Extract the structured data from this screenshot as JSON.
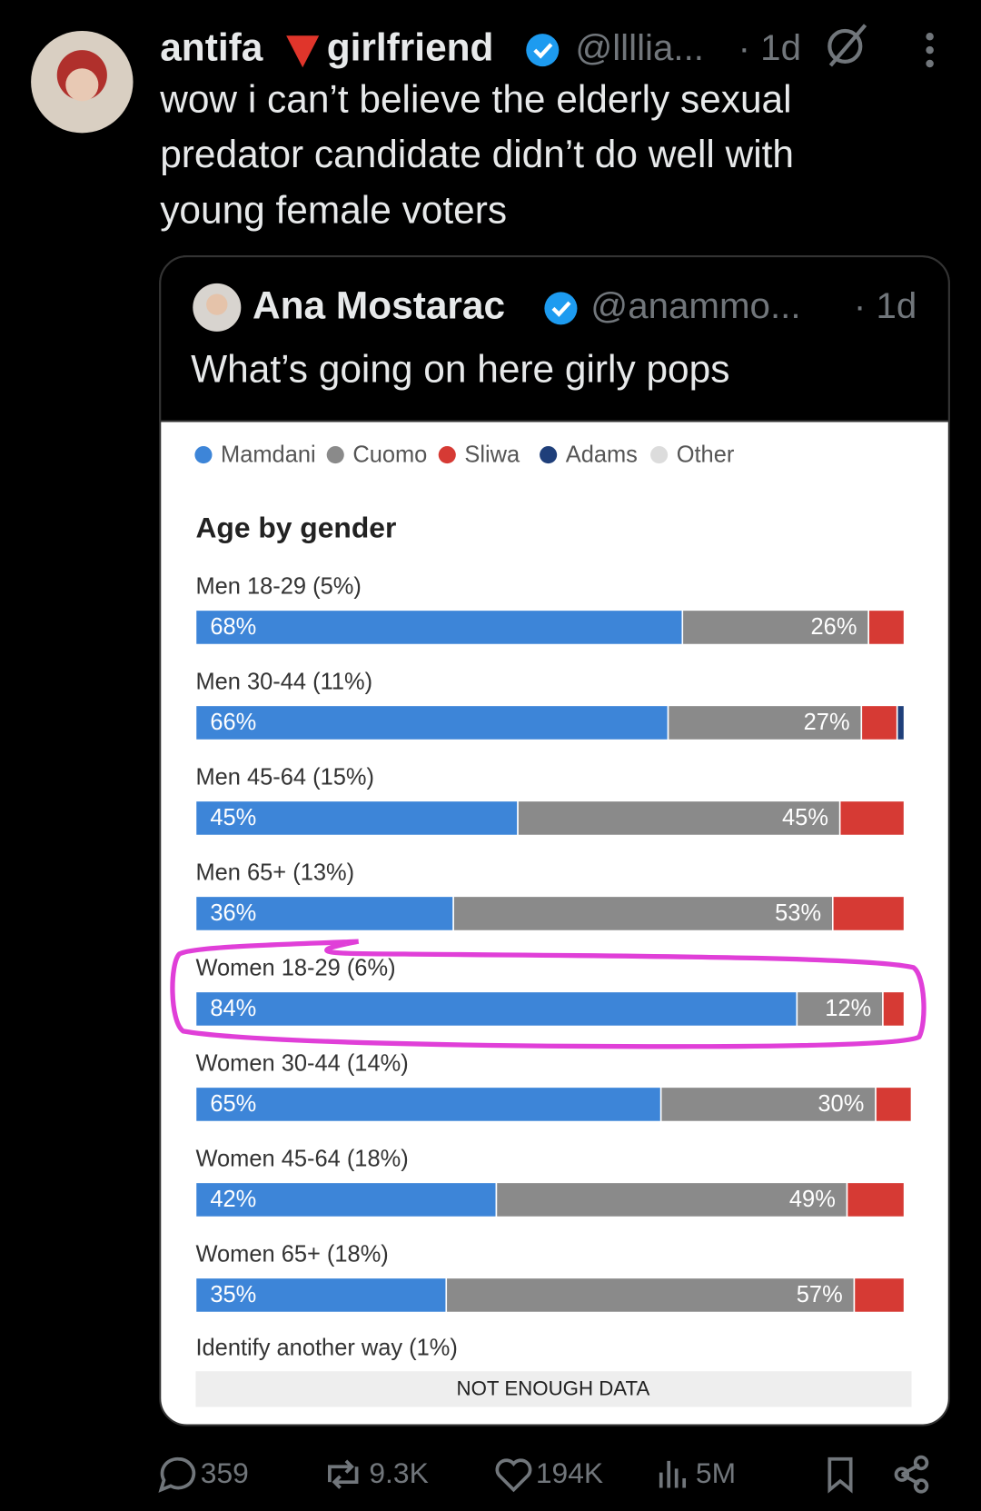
{
  "tweet": {
    "author_first": "antifa",
    "author_second": "girlfriend",
    "handle": "@llllia...",
    "time": "· 1d",
    "text_lines": [
      "wow i can’t believe the elderly sexual",
      "predator candidate didn’t do well with",
      "young female voters"
    ]
  },
  "quoted": {
    "author": "Ana Mostarac",
    "handle": "@anammo...",
    "time": "· 1d",
    "text": "What’s going on here girly pops"
  },
  "chart_data": {
    "type": "bar",
    "orientation": "horizontal",
    "stacked": true,
    "title": "Age by gender",
    "legend": "top",
    "xlim": [
      0,
      100
    ],
    "categories": [
      "Men 18-29 (5%)",
      "Men 30-44 (11%)",
      "Men 45-64 (15%)",
      "Men 65+ (13%)",
      "Women 18-29 (6%)",
      "Women 30-44 (14%)",
      "Women 45-64 (18%)",
      "Women 65+ (18%)"
    ],
    "series": [
      {
        "name": "Mamdani",
        "color": "#3d85d8",
        "values": [
          68,
          66,
          45,
          36,
          84,
          65,
          42,
          35
        ],
        "value_labels": [
          "68%",
          "66%",
          "45%",
          "36%",
          "84%",
          "65%",
          "42%",
          "35%"
        ]
      },
      {
        "name": "Cuomo",
        "color": "#8a8a8a",
        "values": [
          26,
          27,
          45,
          53,
          12,
          30,
          49,
          57
        ],
        "value_labels": [
          "26%",
          "27%",
          "45%",
          "53%",
          "12%",
          "30%",
          "49%",
          "57%"
        ]
      },
      {
        "name": "Sliwa",
        "color": "#d63a34",
        "values": [
          5,
          5,
          9,
          10,
          3,
          5,
          8,
          7
        ]
      },
      {
        "name": "Adams",
        "color": "#1f3f7a",
        "values": [
          0,
          1,
          0,
          0,
          0,
          0,
          0,
          0
        ]
      },
      {
        "name": "Other",
        "color": "#dcdcdc",
        "values": [
          0,
          0,
          0,
          0,
          0,
          0,
          0,
          0
        ]
      }
    ],
    "extra": {
      "label": "Identify another way (1%)",
      "note": "NOT ENOUGH DATA"
    }
  },
  "stats": {
    "replies": "359",
    "reposts": "9.3K",
    "likes": "194K",
    "views": "5M"
  }
}
